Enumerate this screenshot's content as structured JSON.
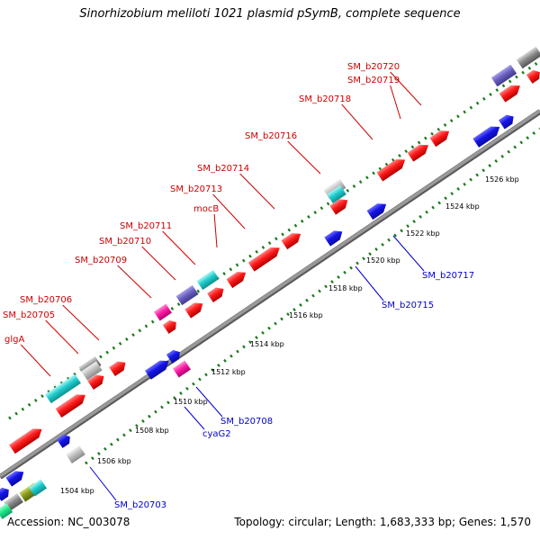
{
  "title": "Sinorhizobium meliloti 1021 plasmid pSymB, complete sequence",
  "footer": {
    "accession": "Accession: NC_003078",
    "topology": "Topology: circular; Length: 1,683,333 bp; Genes: 1,570"
  },
  "colors": {
    "forward_label": "#cc0000",
    "reverse_label": "#0000cc",
    "backbone": "#999999",
    "tick_dots": "#1a7a1a"
  },
  "kbp_ticks": [
    "1504 kbp",
    "1506 kbp",
    "1508 kbp",
    "1510 kbp",
    "1512 kbp",
    "1514 kbp",
    "1516 kbp",
    "1518 kbp",
    "1520 kbp",
    "1522 kbp",
    "1524 kbp",
    "1526 kbp"
  ],
  "forward_labels": [
    "SM_b20720",
    "SM_b20719",
    "SM_b20718",
    "SM_b20716",
    "SM_b20714",
    "SM_b20713",
    "mocB",
    "SM_b20711",
    "SM_b20710",
    "SM_b20709",
    "SM_b20706",
    "SM_b20705",
    "glgA"
  ],
  "reverse_labels": [
    "SM_b20717",
    "SM_b20715",
    "SM_b20708",
    "cyaG2",
    "SM_b20703"
  ],
  "gene_colors": [
    "red",
    "blue",
    "cyan",
    "purple",
    "magenta",
    "gray",
    "olive",
    "green"
  ]
}
